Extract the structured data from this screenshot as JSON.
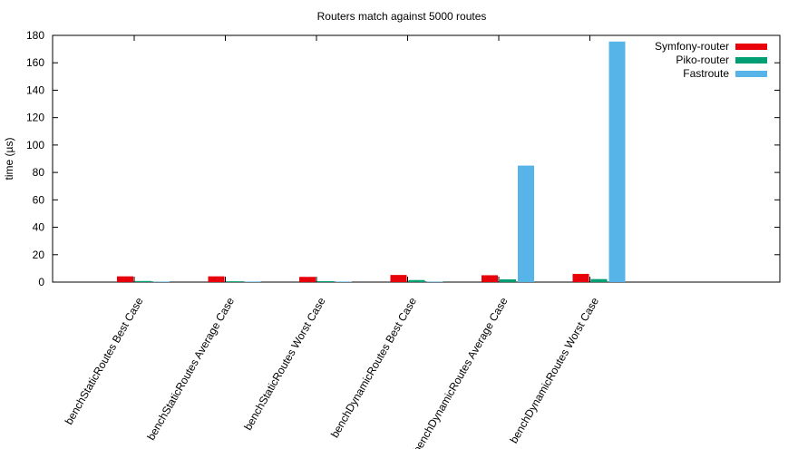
{
  "chart_data": {
    "type": "bar",
    "title": "Routers match against 5000 routes",
    "xlabel": "",
    "ylabel": "time (µs)",
    "ylim": [
      0,
      180
    ],
    "yticks": [
      0,
      20,
      40,
      60,
      80,
      100,
      120,
      140,
      160,
      180
    ],
    "grid": false,
    "legend_position": "top-right",
    "categories": [
      "benchStaticRoutes Best Case",
      "benchStaticRoutes Average Case",
      "benchStaticRoutes Worst Case",
      "benchDynamicRoutes Best Case",
      "benchDynamicRoutes Average Case",
      "benchDynamicRoutes Worst Case"
    ],
    "series": [
      {
        "name": "Symfony-router",
        "color": "#e8000b",
        "values": [
          4.2,
          4.2,
          3.8,
          5.2,
          5.0,
          6.0
        ]
      },
      {
        "name": "Piko-router",
        "color": "#009e73",
        "values": [
          0.8,
          0.6,
          0.7,
          1.5,
          2.0,
          2.2
        ]
      },
      {
        "name": "Fastroute",
        "color": "#56b4e9",
        "values": [
          0.1,
          0.1,
          0.1,
          0.2,
          85,
          175.5
        ]
      }
    ]
  }
}
